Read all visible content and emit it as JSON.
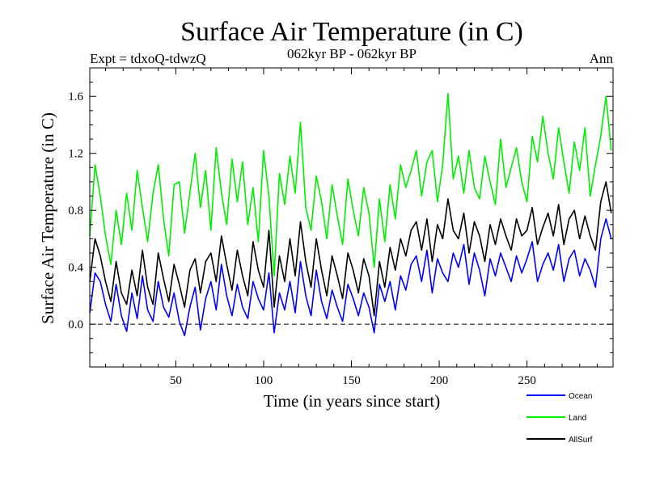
{
  "chart_data": {
    "type": "line",
    "title": "Surface Air Temperature (in C)",
    "subtitle_left": "Expt = tdxoQ-tdwzQ",
    "subtitle_center": "062kyr BP - 062kyr BP",
    "subtitle_right": "Ann",
    "xlabel": "Time (in years since start)",
    "ylabel": "Surface Air Temperature (in C)",
    "xlim": [
      1,
      299
    ],
    "ylim": [
      -0.3,
      1.8
    ],
    "xticks": [
      50,
      100,
      150,
      200,
      250
    ],
    "xtick_labels": [
      "50",
      "100",
      "150",
      "200",
      "250"
    ],
    "yticks": [
      0.0,
      0.4,
      0.8,
      1.2,
      1.6
    ],
    "ytick_labels": [
      "0.0",
      "0.4",
      "0.8",
      "1.2",
      "1.6"
    ],
    "zero_line": {
      "y": 0.0,
      "style": "dashed",
      "color": "#000000"
    },
    "grid": false,
    "legend_position": "bottom-right, below plot",
    "series": [
      {
        "name": "Ocean",
        "color": "#0000ff",
        "x": [
          1,
          4,
          7,
          10,
          13,
          16,
          19,
          22,
          25,
          28,
          31,
          34,
          37,
          40,
          43,
          46,
          49,
          52,
          55,
          58,
          61,
          64,
          67,
          70,
          73,
          76,
          79,
          82,
          85,
          88,
          91,
          94,
          97,
          100,
          103,
          106,
          109,
          112,
          115,
          118,
          121,
          124,
          127,
          130,
          133,
          136,
          139,
          142,
          145,
          148,
          151,
          154,
          157,
          160,
          163,
          166,
          169,
          172,
          175,
          178,
          181,
          184,
          187,
          190,
          193,
          196,
          199,
          202,
          205,
          208,
          211,
          214,
          217,
          220,
          223,
          226,
          229,
          232,
          235,
          238,
          241,
          244,
          247,
          250,
          253,
          256,
          259,
          262,
          265,
          268,
          271,
          274,
          277,
          280,
          283,
          286,
          289,
          292,
          295,
          298
        ],
        "values": [
          0.08,
          0.36,
          0.3,
          0.14,
          0.02,
          0.28,
          0.06,
          -0.05,
          0.22,
          0.04,
          0.34,
          0.1,
          0.02,
          0.3,
          0.12,
          0.05,
          0.22,
          0.02,
          -0.08,
          0.12,
          0.26,
          -0.04,
          0.18,
          0.3,
          0.1,
          0.42,
          0.2,
          0.06,
          0.28,
          0.12,
          0.04,
          0.3,
          0.18,
          0.1,
          0.36,
          -0.06,
          0.22,
          0.1,
          0.3,
          0.08,
          0.44,
          0.2,
          0.06,
          0.38,
          0.16,
          0.04,
          0.24,
          0.12,
          0.02,
          0.28,
          0.18,
          0.06,
          0.22,
          0.12,
          -0.06,
          0.28,
          0.16,
          0.3,
          0.1,
          0.34,
          0.24,
          0.42,
          0.48,
          0.3,
          0.52,
          0.22,
          0.46,
          0.36,
          0.3,
          0.5,
          0.4,
          0.56,
          0.28,
          0.5,
          0.38,
          0.2,
          0.46,
          0.34,
          0.5,
          0.4,
          0.3,
          0.48,
          0.36,
          0.46,
          0.58,
          0.3,
          0.42,
          0.5,
          0.38,
          0.56,
          0.3,
          0.46,
          0.52,
          0.34,
          0.46,
          0.38,
          0.26,
          0.6,
          0.74,
          0.6
        ]
      },
      {
        "name": "Land",
        "color": "#00ee00",
        "x": [
          1,
          4,
          7,
          10,
          13,
          16,
          19,
          22,
          25,
          28,
          31,
          34,
          37,
          40,
          43,
          46,
          49,
          52,
          55,
          58,
          61,
          64,
          67,
          70,
          73,
          76,
          79,
          82,
          85,
          88,
          91,
          94,
          97,
          100,
          103,
          106,
          109,
          112,
          115,
          118,
          121,
          124,
          127,
          130,
          133,
          136,
          139,
          142,
          145,
          148,
          151,
          154,
          157,
          160,
          163,
          166,
          169,
          172,
          175,
          178,
          181,
          184,
          187,
          190,
          193,
          196,
          199,
          202,
          205,
          208,
          211,
          214,
          217,
          220,
          223,
          226,
          229,
          232,
          235,
          238,
          241,
          244,
          247,
          250,
          253,
          256,
          259,
          262,
          265,
          268,
          271,
          274,
          277,
          280,
          283,
          286,
          289,
          292,
          295,
          298
        ],
        "values": [
          0.62,
          1.12,
          0.9,
          0.62,
          0.42,
          0.8,
          0.56,
          0.92,
          0.66,
          1.08,
          0.82,
          0.58,
          0.92,
          1.12,
          0.74,
          0.48,
          0.98,
          1.0,
          0.64,
          0.92,
          1.2,
          0.82,
          1.08,
          0.66,
          1.24,
          0.92,
          0.7,
          1.16,
          0.86,
          1.14,
          0.7,
          0.96,
          0.58,
          1.22,
          0.9,
          0.34,
          1.06,
          0.84,
          1.18,
          0.92,
          1.42,
          0.82,
          0.66,
          1.04,
          0.86,
          0.6,
          0.98,
          0.76,
          0.56,
          1.02,
          0.8,
          0.62,
          0.96,
          0.78,
          0.4,
          0.88,
          0.58,
          0.98,
          0.74,
          1.12,
          0.96,
          1.08,
          1.22,
          0.9,
          1.14,
          1.22,
          0.86,
          1.12,
          1.62,
          1.02,
          1.18,
          0.92,
          1.22,
          0.96,
          0.88,
          1.18,
          1.0,
          0.84,
          1.3,
          0.96,
          1.1,
          1.24,
          1.0,
          0.86,
          1.32,
          1.14,
          1.46,
          1.2,
          1.02,
          1.38,
          1.14,
          0.92,
          1.28,
          1.08,
          1.38,
          0.9,
          1.12,
          1.32,
          1.6,
          1.22
        ]
      },
      {
        "name": "AllSurf",
        "color": "#000000",
        "x": [
          1,
          4,
          7,
          10,
          13,
          16,
          19,
          22,
          25,
          28,
          31,
          34,
          37,
          40,
          43,
          46,
          49,
          52,
          55,
          58,
          61,
          64,
          67,
          70,
          73,
          76,
          79,
          82,
          85,
          88,
          91,
          94,
          97,
          100,
          103,
          106,
          109,
          112,
          115,
          118,
          121,
          124,
          127,
          130,
          133,
          136,
          139,
          142,
          145,
          148,
          151,
          154,
          157,
          160,
          163,
          166,
          169,
          172,
          175,
          178,
          181,
          184,
          187,
          190,
          193,
          196,
          199,
          202,
          205,
          208,
          211,
          214,
          217,
          220,
          223,
          226,
          229,
          232,
          235,
          238,
          241,
          244,
          247,
          250,
          253,
          256,
          259,
          262,
          265,
          268,
          271,
          274,
          277,
          280,
          283,
          286,
          289,
          292,
          295,
          298
        ],
        "values": [
          0.3,
          0.6,
          0.48,
          0.3,
          0.16,
          0.44,
          0.22,
          0.14,
          0.38,
          0.2,
          0.52,
          0.26,
          0.14,
          0.5,
          0.32,
          0.16,
          0.42,
          0.28,
          0.12,
          0.38,
          0.46,
          0.22,
          0.44,
          0.5,
          0.3,
          0.62,
          0.42,
          0.24,
          0.52,
          0.34,
          0.2,
          0.58,
          0.38,
          0.26,
          0.66,
          0.12,
          0.48,
          0.3,
          0.6,
          0.34,
          0.72,
          0.44,
          0.26,
          0.6,
          0.38,
          0.2,
          0.48,
          0.34,
          0.18,
          0.5,
          0.38,
          0.22,
          0.46,
          0.34,
          0.06,
          0.44,
          0.26,
          0.54,
          0.38,
          0.6,
          0.48,
          0.66,
          0.72,
          0.52,
          0.74,
          0.44,
          0.7,
          0.6,
          0.88,
          0.66,
          0.6,
          0.78,
          0.5,
          0.72,
          0.62,
          0.44,
          0.7,
          0.56,
          0.74,
          0.62,
          0.52,
          0.74,
          0.62,
          0.66,
          0.82,
          0.56,
          0.68,
          0.78,
          0.62,
          0.84,
          0.56,
          0.74,
          0.8,
          0.6,
          0.76,
          0.62,
          0.52,
          0.86,
          1.0,
          0.78
        ]
      }
    ]
  }
}
